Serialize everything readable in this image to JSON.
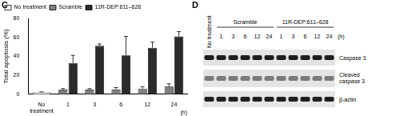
{
  "chart_data": {
    "type": "bar",
    "title": "C",
    "ylabel": "Total apoptosis (%)",
    "xlabel": "(h)",
    "categories": [
      "No treatment",
      "1",
      "3",
      "6",
      "12",
      "24"
    ],
    "ylim": [
      0,
      80
    ],
    "yticks": [
      0,
      20,
      40,
      60,
      80
    ],
    "legend": "upper left",
    "series": [
      {
        "name": "No treatment",
        "color": "#ffffff",
        "values": [
          2,
          null,
          null,
          null,
          null,
          null
        ],
        "errors": [
          0.5,
          null,
          null,
          null,
          null,
          null
        ]
      },
      {
        "name": "Scramble",
        "color": "#808080",
        "values": [
          null,
          5,
          5,
          5,
          6,
          8
        ],
        "errors": [
          null,
          1,
          1,
          2,
          2,
          3
        ]
      },
      {
        "name": "11R-DEP:611–628",
        "color": "#2b2b2b",
        "values": [
          null,
          33,
          51,
          41,
          49,
          61
        ],
        "errors": [
          null,
          8,
          2,
          20,
          6,
          5
        ]
      }
    ]
  },
  "blot": {
    "panel": "D",
    "control": "No treatment",
    "groups": [
      {
        "label": "Scramble",
        "times": [
          "1",
          "3",
          "6",
          "12",
          "24"
        ]
      },
      {
        "label": "11R-DEP:611–628",
        "times": [
          "1",
          "3",
          "6",
          "12",
          "24"
        ]
      }
    ],
    "time_unit": "(h)",
    "rows": [
      "Caspase 3",
      "Cleaved caspase 3",
      "β-actin"
    ]
  }
}
